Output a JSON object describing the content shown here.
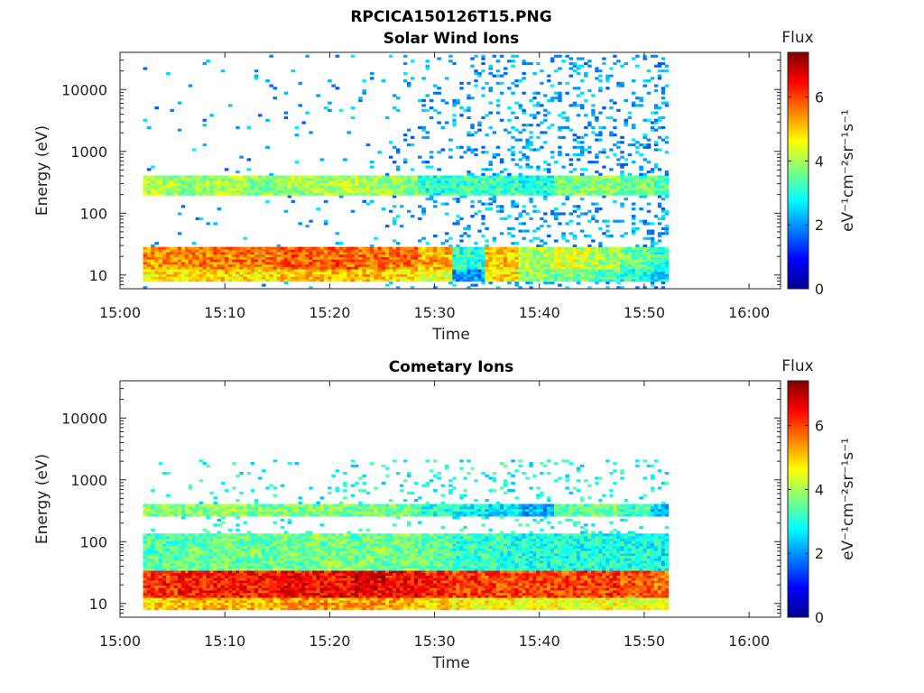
{
  "figure": {
    "title": "RPCICA150126T15.PNG"
  },
  "chart_data": [
    {
      "type": "heatmap",
      "title": "Solar Wind Ions",
      "xlabel": "Time",
      "ylabel": "Energy (eV)",
      "y_scale": "log",
      "xlim": [
        "15:00",
        "16:03"
      ],
      "ylim": [
        6,
        40000
      ],
      "x_ticks": [
        "15:00",
        "15:10",
        "15:20",
        "15:30",
        "15:40",
        "15:50",
        "16:00"
      ],
      "y_ticks": [
        "10",
        "100",
        "1000",
        "10000"
      ],
      "colorbar": {
        "label": "Flux",
        "unit": "eV⁻¹cm⁻²sr⁻¹s⁻¹",
        "range": [
          0,
          7.4
        ],
        "ticks": [
          "0",
          "2",
          "4",
          "6"
        ]
      },
      "sweeps_start_minutes": [
        2.2,
        5.5,
        8.9,
        12.1,
        15.3,
        18.7,
        22.0,
        25.3,
        28.4,
        31.7,
        34.8,
        38.0,
        41.4,
        44.6,
        47.7,
        50.6
      ],
      "data_end_minute": 52.3,
      "bands": [
        {
          "emin": 8,
          "emax": 13,
          "intensity": [
            4.8,
            4.8,
            4.9,
            4.8,
            5.0,
            5.1,
            5.0,
            4.8,
            4.4,
            2.1,
            4.8,
            3.8,
            3.6,
            3.3,
            3.0,
            2.6
          ]
        },
        {
          "emin": 13,
          "emax": 28,
          "intensity": [
            5.4,
            5.5,
            5.6,
            5.6,
            5.8,
            5.8,
            5.7,
            5.6,
            5.2,
            3.0,
            5.0,
            4.0,
            4.3,
            4.0,
            3.5,
            3.1
          ]
        },
        {
          "emin": 200,
          "emax": 420,
          "intensity": [
            4.0,
            3.8,
            4.0,
            3.8,
            4.0,
            4.0,
            4.0,
            3.8,
            3.0,
            3.3,
            3.2,
            3.0,
            3.6,
            3.8,
            3.5,
            3.4
          ]
        }
      ],
      "sparse": {
        "emin": 6,
        "emax": 38000,
        "level": 2.0,
        "density": [
          0.05,
          0.06,
          0.07,
          0.08,
          0.09,
          0.1,
          0.12,
          0.2,
          0.3,
          0.45,
          0.5,
          0.55,
          0.55,
          0.5,
          0.55,
          0.7
        ]
      }
    },
    {
      "type": "heatmap",
      "title": "Cometary Ions",
      "xlabel": "Time",
      "ylabel": "Energy (eV)",
      "y_scale": "log",
      "xlim": [
        "15:00",
        "16:03"
      ],
      "ylim": [
        6,
        40000
      ],
      "x_ticks": [
        "15:00",
        "15:10",
        "15:20",
        "15:30",
        "15:40",
        "15:50",
        "16:00"
      ],
      "y_ticks": [
        "10",
        "100",
        "1000",
        "10000"
      ],
      "colorbar": {
        "label": "Flux",
        "unit": "eV⁻¹cm⁻²sr⁻¹s⁻¹",
        "range": [
          0,
          7.4
        ],
        "ticks": [
          "0",
          "2",
          "4",
          "6"
        ]
      },
      "sweeps_start_minutes": [
        2.2,
        5.5,
        8.9,
        12.1,
        15.3,
        18.7,
        22.0,
        25.3,
        28.4,
        31.7,
        34.8,
        38.0,
        41.4,
        44.6,
        47.7,
        50.6
      ],
      "data_end_minute": 52.3,
      "bands": [
        {
          "emin": 8,
          "emax": 13,
          "intensity": [
            5.0,
            5.1,
            5.2,
            5.1,
            5.3,
            5.3,
            5.3,
            5.2,
            5.0,
            4.6,
            4.6,
            4.5,
            4.5,
            4.6,
            4.4,
            4.2
          ]
        },
        {
          "emin": 13,
          "emax": 35,
          "intensity": [
            6.2,
            6.3,
            6.4,
            6.3,
            6.5,
            6.5,
            6.6,
            6.5,
            6.3,
            6.1,
            6.0,
            5.9,
            6.0,
            6.1,
            5.8,
            5.6
          ]
        },
        {
          "emin": 35,
          "emax": 130,
          "intensity": [
            3.4,
            3.5,
            3.6,
            3.5,
            3.6,
            3.7,
            3.6,
            3.6,
            3.4,
            3.2,
            3.1,
            3.0,
            3.0,
            3.0,
            3.0,
            2.8
          ]
        },
        {
          "emin": 250,
          "emax": 420,
          "intensity": [
            3.6,
            3.7,
            3.8,
            3.7,
            3.7,
            3.8,
            3.7,
            3.5,
            3.0,
            2.8,
            2.6,
            2.2,
            3.4,
            3.5,
            3.2,
            2.4
          ]
        }
      ],
      "sparse": {
        "emin": 40,
        "emax": 2200,
        "level": 2.8,
        "density": [
          0.15,
          0.15,
          0.18,
          0.18,
          0.2,
          0.2,
          0.2,
          0.25,
          0.3,
          0.3,
          0.35,
          0.35,
          0.35,
          0.3,
          0.3,
          0.3
        ]
      }
    }
  ]
}
